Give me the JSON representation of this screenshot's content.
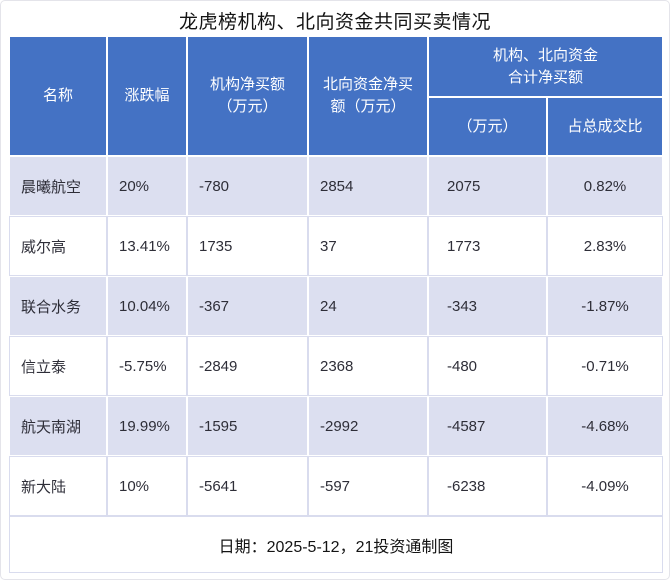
{
  "colors": {
    "header_bg": "#4472c4",
    "header_text": "#ffffff",
    "row_alt_bg": "#dcdff0",
    "row_bg": "#ffffff",
    "grid_border": "#d9dcee",
    "body_text": "#2e2e38"
  },
  "chart_data": {
    "type": "table",
    "title": "龙虎榜机构、北向资金共同买卖情况",
    "header": {
      "name": "名称",
      "change": "涨跌幅",
      "inst_net_buy": "机构净买额\n（万元）",
      "north_net_buy": "北向资金净买\n额（万元）",
      "combined_group": "机构、北向资金\n合计净买额",
      "combined_wan": "（万元）",
      "combined_ratio": "占总成交比"
    },
    "columns_flat": [
      "名称",
      "涨跌幅",
      "机构净买额（万元）",
      "北向资金净买额（万元）",
      "机构、北向资金合计净买额（万元）",
      "机构、北向资金合计净买额占总成交比"
    ],
    "rows": [
      {
        "name": "晨曦航空",
        "change": "20%",
        "inst": "-780",
        "north": "2854",
        "total": "2075",
        "ratio": "0.82%"
      },
      {
        "name": "威尔高",
        "change": "13.41%",
        "inst": "1735",
        "north": "37",
        "total": "1773",
        "ratio": "2.83%"
      },
      {
        "name": "联合水务",
        "change": "10.04%",
        "inst": "-367",
        "north": "24",
        "total": "-343",
        "ratio": "-1.87%"
      },
      {
        "name": "信立泰",
        "change": "-5.75%",
        "inst": "-2849",
        "north": "2368",
        "total": "-480",
        "ratio": "-0.71%"
      },
      {
        "name": "航天南湖",
        "change": "19.99%",
        "inst": "-1595",
        "north": "-2992",
        "total": "-4587",
        "ratio": "-4.68%"
      },
      {
        "name": "新大陆",
        "change": "10%",
        "inst": "-5641",
        "north": "-597",
        "total": "-6238",
        "ratio": "-4.09%"
      }
    ],
    "footer": "日期：2025-5-12，21投资通制图"
  }
}
